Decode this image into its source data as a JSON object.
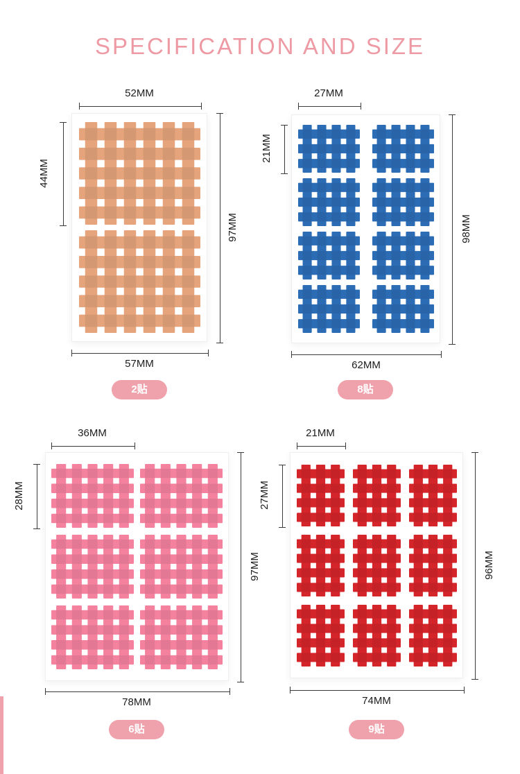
{
  "title": "SPECIFICATION AND SIZE",
  "colors": {
    "title": "#ee9aa4",
    "badge_bg": "#f0a2ac",
    "badge_text": "#ffffff",
    "dimension_line": "#3a3a3a",
    "panel_colors": [
      "#e5a47b",
      "#2c6cb4",
      "#f4829f",
      "#d4252a"
    ]
  },
  "panels": [
    {
      "name": "flesh-2-patch-sheet",
      "badge": "2贴",
      "color": "#e5a47b",
      "dims": {
        "top": "52MM",
        "left": "44MM",
        "right": "97MM",
        "bottom": "57MM"
      },
      "patch_grid": {
        "cols": 1,
        "rows": 2,
        "vbars": 6,
        "hbars": 5
      }
    },
    {
      "name": "blue-8-patch-sheet",
      "badge": "8贴",
      "color": "#2c6cb4",
      "dims": {
        "top": "27MM",
        "left": "21MM",
        "right": "98MM",
        "bottom": "62MM"
      },
      "patch_grid": {
        "cols": 2,
        "rows": 4,
        "vbars": 4,
        "hbars": 3
      }
    },
    {
      "name": "pink-6-patch-sheet",
      "badge": "6贴",
      "color": "#f4829f",
      "dims": {
        "top": "36MM",
        "left": "28MM",
        "right": "97MM",
        "bottom": "78MM"
      },
      "patch_grid": {
        "cols": 2,
        "rows": 3,
        "vbars": 5,
        "hbars": 4
      }
    },
    {
      "name": "red-9-patch-sheet",
      "badge": "9贴",
      "color": "#d4252a",
      "dims": {
        "top": "21MM",
        "left": "27MM",
        "right": "96MM",
        "bottom": "74MM"
      },
      "patch_grid": {
        "cols": 3,
        "rows": 3,
        "vbars": 3,
        "hbars": 4
      }
    }
  ]
}
